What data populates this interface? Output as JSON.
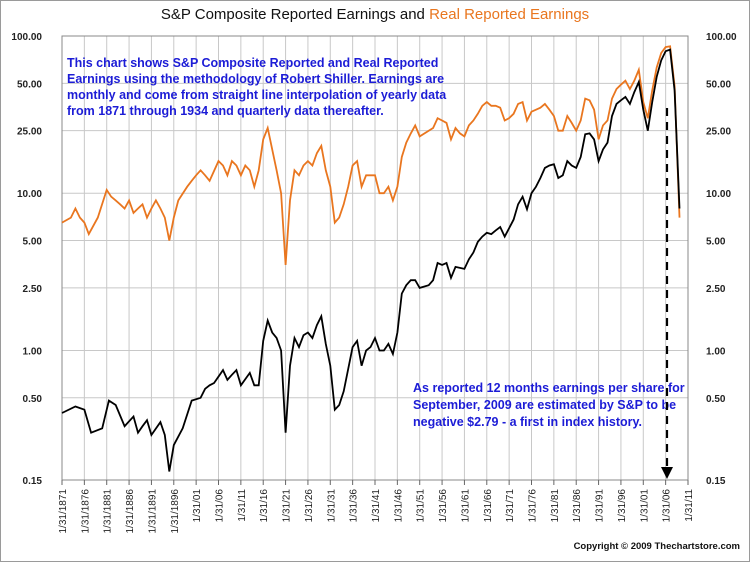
{
  "header": {
    "title_part1": "S&P Composite Reported Earnings and ",
    "title_part2": "Real Reported Earnings"
  },
  "annotations": {
    "methodology_lines": [
      "This chart shows S&P Composite Reported and Real Reported",
      "Earnings using the methodology of Robert Shiller.  Earnings are",
      "monthly and come from straight line interpolation of yearly data",
      "from 1871 through 1934 and quarterly data thereafter."
    ],
    "note_lines": [
      "As reported 12 months earnings per share for",
      "September, 2009 are estimated by S&P to be",
      "negative $2.79 -  a first  in index history."
    ]
  },
  "footer": {
    "copyright": "Copyright © 2009 Thechartstore.com"
  },
  "colors": {
    "nominal": "#000000",
    "real": "#e9761f",
    "note_text": "#1c1cd6",
    "grid": "#c8c8c8"
  },
  "chart_data": {
    "type": "line",
    "y_scale": "log",
    "ylim": [
      0.15,
      100
    ],
    "y_ticks": [
      0.15,
      0.5,
      1,
      2.5,
      5,
      10,
      25,
      50,
      100
    ],
    "y_tick_labels": [
      "0.15",
      "0.50",
      "1.00",
      "2.50",
      "5.00",
      "10.00",
      "25.00",
      "50.00",
      "100.00"
    ],
    "x_ticks": [
      1871,
      1876,
      1881,
      1886,
      1891,
      1896,
      1901,
      1906,
      1911,
      1916,
      1921,
      1926,
      1931,
      1936,
      1941,
      1946,
      1951,
      1956,
      1961,
      1966,
      1971,
      1976,
      1981,
      1986,
      1991,
      1996,
      2001,
      2006,
      2011
    ],
    "x_tick_labels": [
      "1/31/1871",
      "1/31/1876",
      "1/31/1881",
      "1/31/1886",
      "1/31/1891",
      "1/31/1896",
      "1/31/01",
      "1/31/06",
      "1/31/11",
      "1/31/16",
      "1/31/21",
      "1/31/26",
      "1/31/31",
      "1/31/36",
      "1/31/41",
      "1/31/46",
      "1/31/51",
      "1/31/56",
      "1/31/61",
      "1/31/66",
      "1/31/71",
      "1/31/76",
      "1/31/81",
      "1/31/86",
      "1/31/91",
      "1/31/96",
      "1/31/01",
      "1/31/06",
      "1/31/11"
    ],
    "xlim": [
      1871,
      2011
    ],
    "series": [
      {
        "key": "nominal",
        "points": [
          [
            1871,
            0.4
          ],
          [
            1874,
            0.44
          ],
          [
            1876,
            0.42
          ],
          [
            1877.5,
            0.3
          ],
          [
            1880,
            0.32
          ],
          [
            1881.5,
            0.48
          ],
          [
            1883,
            0.45
          ],
          [
            1885,
            0.33
          ],
          [
            1887,
            0.38
          ],
          [
            1888,
            0.3
          ],
          [
            1889,
            0.33
          ],
          [
            1890,
            0.36
          ],
          [
            1891,
            0.29
          ],
          [
            1893,
            0.35
          ],
          [
            1894,
            0.29
          ],
          [
            1895,
            0.17
          ],
          [
            1896,
            0.25
          ],
          [
            1898,
            0.32
          ],
          [
            1900,
            0.48
          ],
          [
            1902,
            0.5
          ],
          [
            1903,
            0.57
          ],
          [
            1904,
            0.6
          ],
          [
            1905,
            0.62
          ],
          [
            1907,
            0.75
          ],
          [
            1908,
            0.65
          ],
          [
            1909,
            0.7
          ],
          [
            1910,
            0.75
          ],
          [
            1911,
            0.6
          ],
          [
            1913,
            0.72
          ],
          [
            1914,
            0.6
          ],
          [
            1915,
            0.6
          ],
          [
            1916,
            1.15
          ],
          [
            1917,
            1.55
          ],
          [
            1918,
            1.3
          ],
          [
            1919,
            1.2
          ],
          [
            1920,
            1.0
          ],
          [
            1921,
            0.3
          ],
          [
            1922,
            0.8
          ],
          [
            1923,
            1.2
          ],
          [
            1924,
            1.05
          ],
          [
            1925,
            1.25
          ],
          [
            1926,
            1.3
          ],
          [
            1927,
            1.2
          ],
          [
            1928,
            1.45
          ],
          [
            1929,
            1.65
          ],
          [
            1930,
            1.1
          ],
          [
            1931,
            0.8
          ],
          [
            1932,
            0.42
          ],
          [
            1933,
            0.45
          ],
          [
            1934,
            0.55
          ],
          [
            1936,
            1.05
          ],
          [
            1937,
            1.15
          ],
          [
            1938,
            0.8
          ],
          [
            1939,
            1.0
          ],
          [
            1940,
            1.05
          ],
          [
            1941,
            1.2
          ],
          [
            1942,
            1.0
          ],
          [
            1943,
            1.0
          ],
          [
            1944,
            1.1
          ],
          [
            1945,
            0.95
          ],
          [
            1946,
            1.3
          ],
          [
            1947,
            2.3
          ],
          [
            1948,
            2.6
          ],
          [
            1949,
            2.8
          ],
          [
            1950,
            2.8
          ],
          [
            1951,
            2.5
          ],
          [
            1953,
            2.6
          ],
          [
            1954,
            2.8
          ],
          [
            1955,
            3.6
          ],
          [
            1956,
            3.5
          ],
          [
            1957,
            3.6
          ],
          [
            1958,
            2.9
          ],
          [
            1959,
            3.4
          ],
          [
            1961,
            3.3
          ],
          [
            1962,
            3.8
          ],
          [
            1963,
            4.2
          ],
          [
            1964,
            4.9
          ],
          [
            1965,
            5.3
          ],
          [
            1966,
            5.6
          ],
          [
            1967,
            5.5
          ],
          [
            1968,
            5.8
          ],
          [
            1969,
            6.1
          ],
          [
            1970,
            5.3
          ],
          [
            1972,
            6.8
          ],
          [
            1973,
            8.5
          ],
          [
            1974,
            9.5
          ],
          [
            1975,
            7.9
          ],
          [
            1976,
            10
          ],
          [
            1977,
            11
          ],
          [
            1978,
            12.5
          ],
          [
            1979,
            14.5
          ],
          [
            1980,
            15
          ],
          [
            1981,
            15.3
          ],
          [
            1982,
            12.5
          ],
          [
            1983,
            13
          ],
          [
            1984,
            16
          ],
          [
            1985,
            15
          ],
          [
            1986,
            14.5
          ],
          [
            1987,
            17
          ],
          [
            1988,
            23.7
          ],
          [
            1989,
            24
          ],
          [
            1990,
            22
          ],
          [
            1991,
            16
          ],
          [
            1992,
            19
          ],
          [
            1993,
            21
          ],
          [
            1994,
            31
          ],
          [
            1995,
            37
          ],
          [
            1996,
            39
          ],
          [
            1997,
            41
          ],
          [
            1998,
            37
          ],
          [
            1999,
            44
          ],
          [
            2000,
            51
          ],
          [
            2001,
            34
          ],
          [
            2002,
            25
          ],
          [
            2003,
            38
          ],
          [
            2004,
            55
          ],
          [
            2005,
            70
          ],
          [
            2006,
            80
          ],
          [
            2007,
            82
          ],
          [
            2008,
            45
          ],
          [
            2009.1,
            8
          ]
        ]
      },
      {
        "key": "real",
        "points": [
          [
            1871,
            6.5
          ],
          [
            1873,
            7
          ],
          [
            1874,
            8
          ],
          [
            1875,
            7
          ],
          [
            1876,
            6.5
          ],
          [
            1877,
            5.5
          ],
          [
            1879,
            7
          ],
          [
            1881,
            10.5
          ],
          [
            1882,
            9.5
          ],
          [
            1883,
            9
          ],
          [
            1884,
            8.5
          ],
          [
            1885,
            8
          ],
          [
            1886,
            9
          ],
          [
            1887,
            7.5
          ],
          [
            1888,
            8
          ],
          [
            1889,
            8.5
          ],
          [
            1890,
            7
          ],
          [
            1891,
            8
          ],
          [
            1892,
            9
          ],
          [
            1893,
            8
          ],
          [
            1894,
            7
          ],
          [
            1895,
            5
          ],
          [
            1896,
            7
          ],
          [
            1897,
            9
          ],
          [
            1899,
            11
          ],
          [
            1900,
            12
          ],
          [
            1901,
            13
          ],
          [
            1902,
            14
          ],
          [
            1903,
            13
          ],
          [
            1904,
            12
          ],
          [
            1906,
            16
          ],
          [
            1907,
            15
          ],
          [
            1908,
            13
          ],
          [
            1909,
            16
          ],
          [
            1910,
            15
          ],
          [
            1911,
            13
          ],
          [
            1912,
            15
          ],
          [
            1913,
            14
          ],
          [
            1914,
            11
          ],
          [
            1915,
            14
          ],
          [
            1916,
            22
          ],
          [
            1917,
            26
          ],
          [
            1918,
            19
          ],
          [
            1919,
            14
          ],
          [
            1920,
            10
          ],
          [
            1921,
            3.5
          ],
          [
            1922,
            9
          ],
          [
            1923,
            14
          ],
          [
            1924,
            13
          ],
          [
            1925,
            15
          ],
          [
            1926,
            16
          ],
          [
            1927,
            15
          ],
          [
            1928,
            18
          ],
          [
            1929,
            20
          ],
          [
            1930,
            14
          ],
          [
            1931,
            11
          ],
          [
            1932,
            6.5
          ],
          [
            1933,
            7
          ],
          [
            1934,
            8.5
          ],
          [
            1935,
            11
          ],
          [
            1936,
            15
          ],
          [
            1937,
            16
          ],
          [
            1938,
            11
          ],
          [
            1939,
            13
          ],
          [
            1940,
            13
          ],
          [
            1941,
            13
          ],
          [
            1942,
            10
          ],
          [
            1943,
            10
          ],
          [
            1944,
            11
          ],
          [
            1945,
            9
          ],
          [
            1946,
            11
          ],
          [
            1947,
            17
          ],
          [
            1948,
            21
          ],
          [
            1949,
            24
          ],
          [
            1950,
            27
          ],
          [
            1951,
            23
          ],
          [
            1953,
            25
          ],
          [
            1954,
            26
          ],
          [
            1955,
            30
          ],
          [
            1956,
            29
          ],
          [
            1957,
            28
          ],
          [
            1958,
            22
          ],
          [
            1959,
            26
          ],
          [
            1960,
            24
          ],
          [
            1961,
            23
          ],
          [
            1962,
            27
          ],
          [
            1963,
            29
          ],
          [
            1964,
            32
          ],
          [
            1965,
            36
          ],
          [
            1966,
            38
          ],
          [
            1967,
            36
          ],
          [
            1968,
            36
          ],
          [
            1969,
            35
          ],
          [
            1970,
            29
          ],
          [
            1971,
            30
          ],
          [
            1972,
            32
          ],
          [
            1973,
            37
          ],
          [
            1974,
            38
          ],
          [
            1975,
            29
          ],
          [
            1976,
            33
          ],
          [
            1977,
            34
          ],
          [
            1978,
            35
          ],
          [
            1979,
            37
          ],
          [
            1980,
            34
          ],
          [
            1981,
            31
          ],
          [
            1982,
            25
          ],
          [
            1983,
            25
          ],
          [
            1984,
            31
          ],
          [
            1985,
            28
          ],
          [
            1986,
            25
          ],
          [
            1987,
            29
          ],
          [
            1988,
            40
          ],
          [
            1989,
            39
          ],
          [
            1990,
            34
          ],
          [
            1991,
            22
          ],
          [
            1992,
            27
          ],
          [
            1993,
            29
          ],
          [
            1994,
            40
          ],
          [
            1995,
            46
          ],
          [
            1996,
            49
          ],
          [
            1997,
            52
          ],
          [
            1998,
            46
          ],
          [
            1999,
            52
          ],
          [
            2000,
            61
          ],
          [
            2001,
            38
          ],
          [
            2002,
            30
          ],
          [
            2003,
            45
          ],
          [
            2004,
            63
          ],
          [
            2005,
            78
          ],
          [
            2006,
            85
          ],
          [
            2007,
            86
          ],
          [
            2008,
            48
          ],
          [
            2009.1,
            7
          ]
        ]
      }
    ]
  }
}
